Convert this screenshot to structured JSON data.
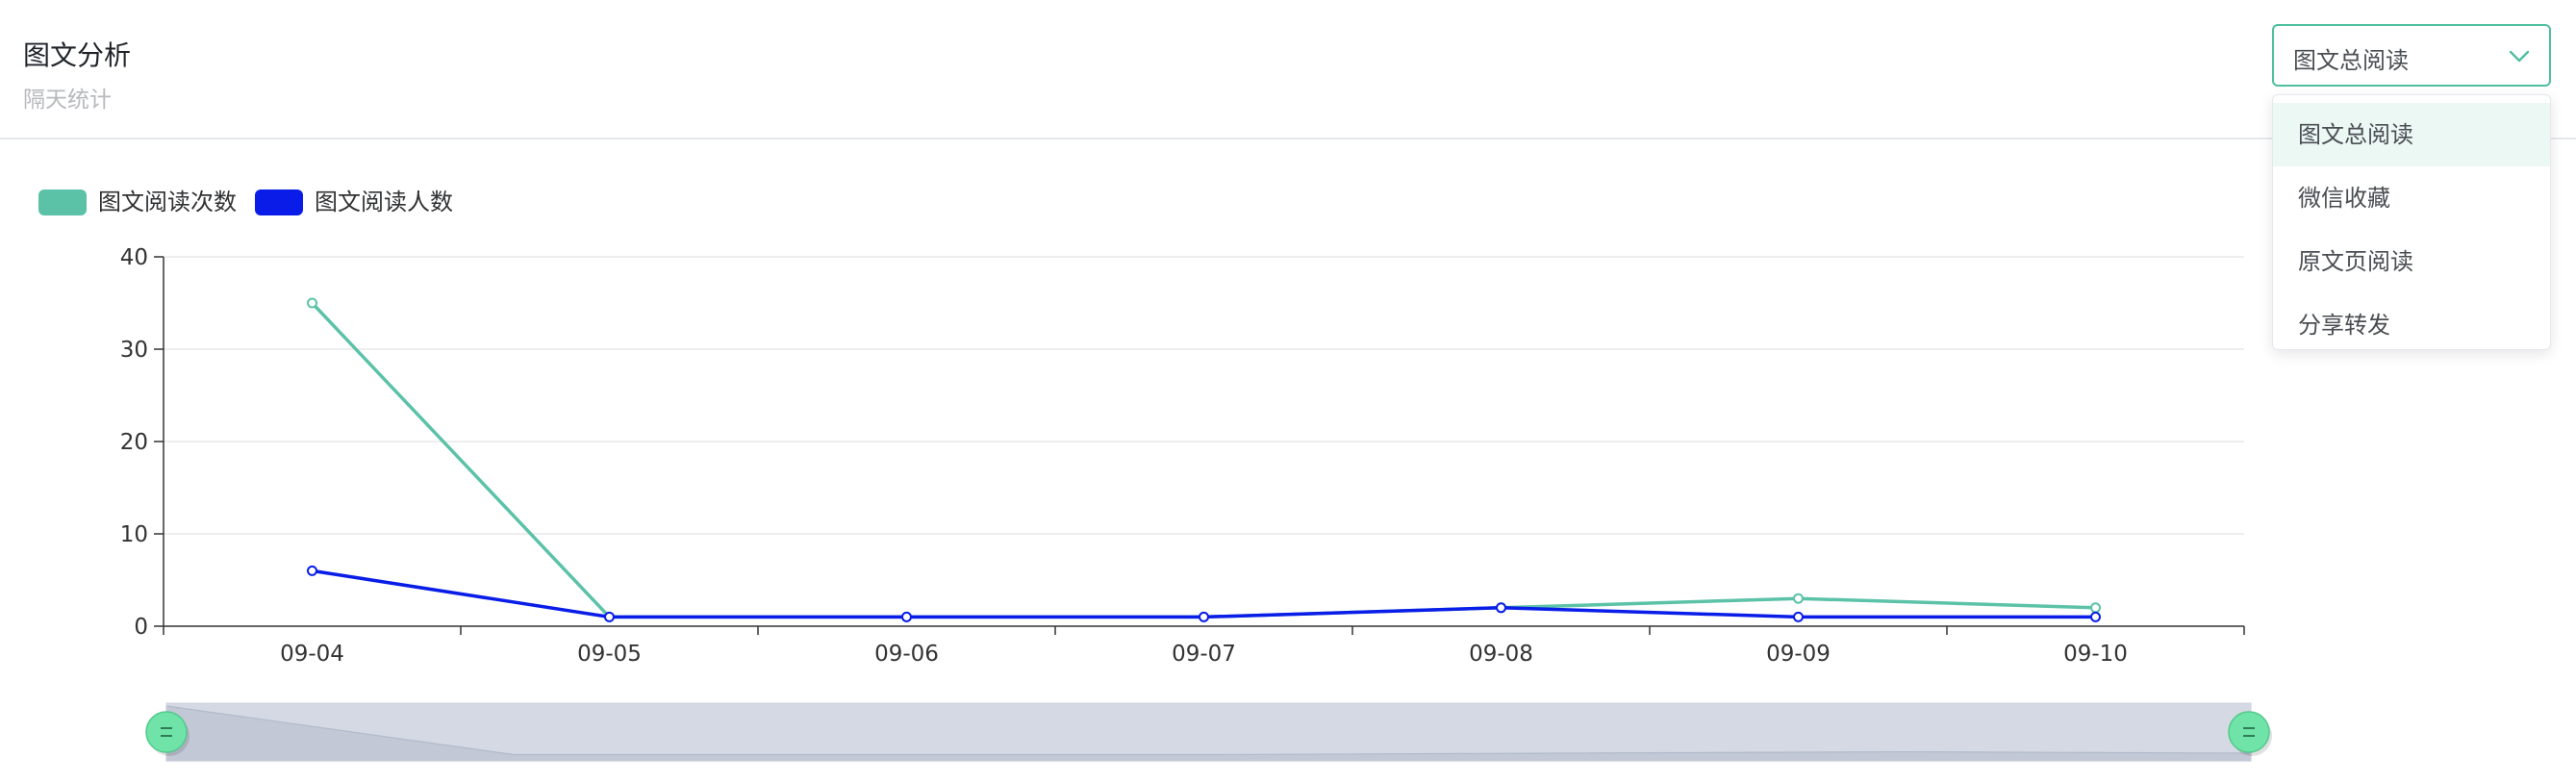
{
  "header": {
    "title": "图文分析",
    "subtitle": "隔天统计"
  },
  "select": {
    "value": "图文总阅读",
    "options": [
      "图文总阅读",
      "微信收藏",
      "原文页阅读",
      "分享转发"
    ],
    "active_index": 0
  },
  "chart_data": {
    "type": "line",
    "categories": [
      "09-04",
      "09-05",
      "09-06",
      "09-07",
      "09-08",
      "09-09",
      "09-10"
    ],
    "series": [
      {
        "name": "图文阅读次数",
        "color": "#5bc2a8",
        "values": [
          35,
          1,
          1,
          1,
          2,
          3,
          2
        ]
      },
      {
        "name": "图文阅读人数",
        "color": "#0a1de8",
        "values": [
          6,
          1,
          1,
          1,
          2,
          1,
          1
        ]
      }
    ],
    "ylim": [
      0,
      40
    ],
    "yticks": [
      0,
      10,
      20,
      30,
      40
    ],
    "grid": true,
    "legend": "top-left",
    "datazoom": {
      "start": 0,
      "end": 100
    }
  }
}
